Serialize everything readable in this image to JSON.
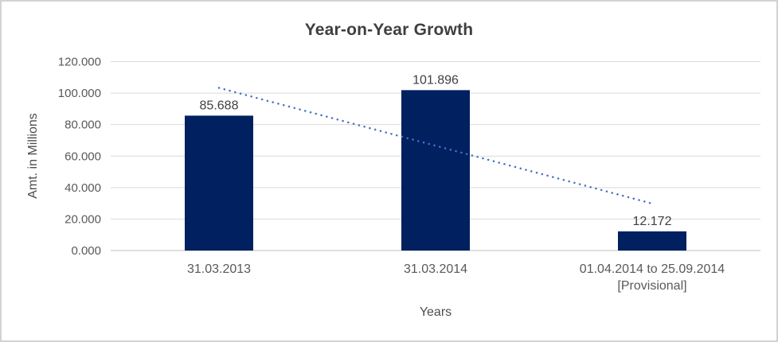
{
  "chart_data": {
    "type": "bar",
    "title": "Year-on-Year Growth",
    "xlabel": "Years",
    "ylabel": "Amt. in Millions",
    "categories": [
      "31.03.2013",
      "31.03.2014",
      "01.04.2014 to 25.09.2014"
    ],
    "category_sublabels": [
      "",
      "",
      "[Provisional]"
    ],
    "values": [
      85.688,
      101.896,
      12.172
    ],
    "data_labels": [
      "85.688",
      "101.896",
      "12.172"
    ],
    "ylim": [
      0,
      120
    ],
    "ytick_step": 20,
    "ytick_labels": [
      "0.000",
      "20.000",
      "40.000",
      "60.000",
      "80.000",
      "100.000",
      "120.000"
    ],
    "grid": true,
    "legend": "none",
    "trendline": {
      "kind": "linear",
      "style": "dotted"
    },
    "colors": {
      "bar": "#002060",
      "trend": "#4472c4",
      "gridline": "#d9d9d9",
      "axis_line": "#bfbfbf",
      "tick_text": "#595959",
      "label_text": "#404040",
      "title_text": "#3f3f3f",
      "frame_border": "#d2d2d2",
      "background": "#ffffff"
    }
  }
}
